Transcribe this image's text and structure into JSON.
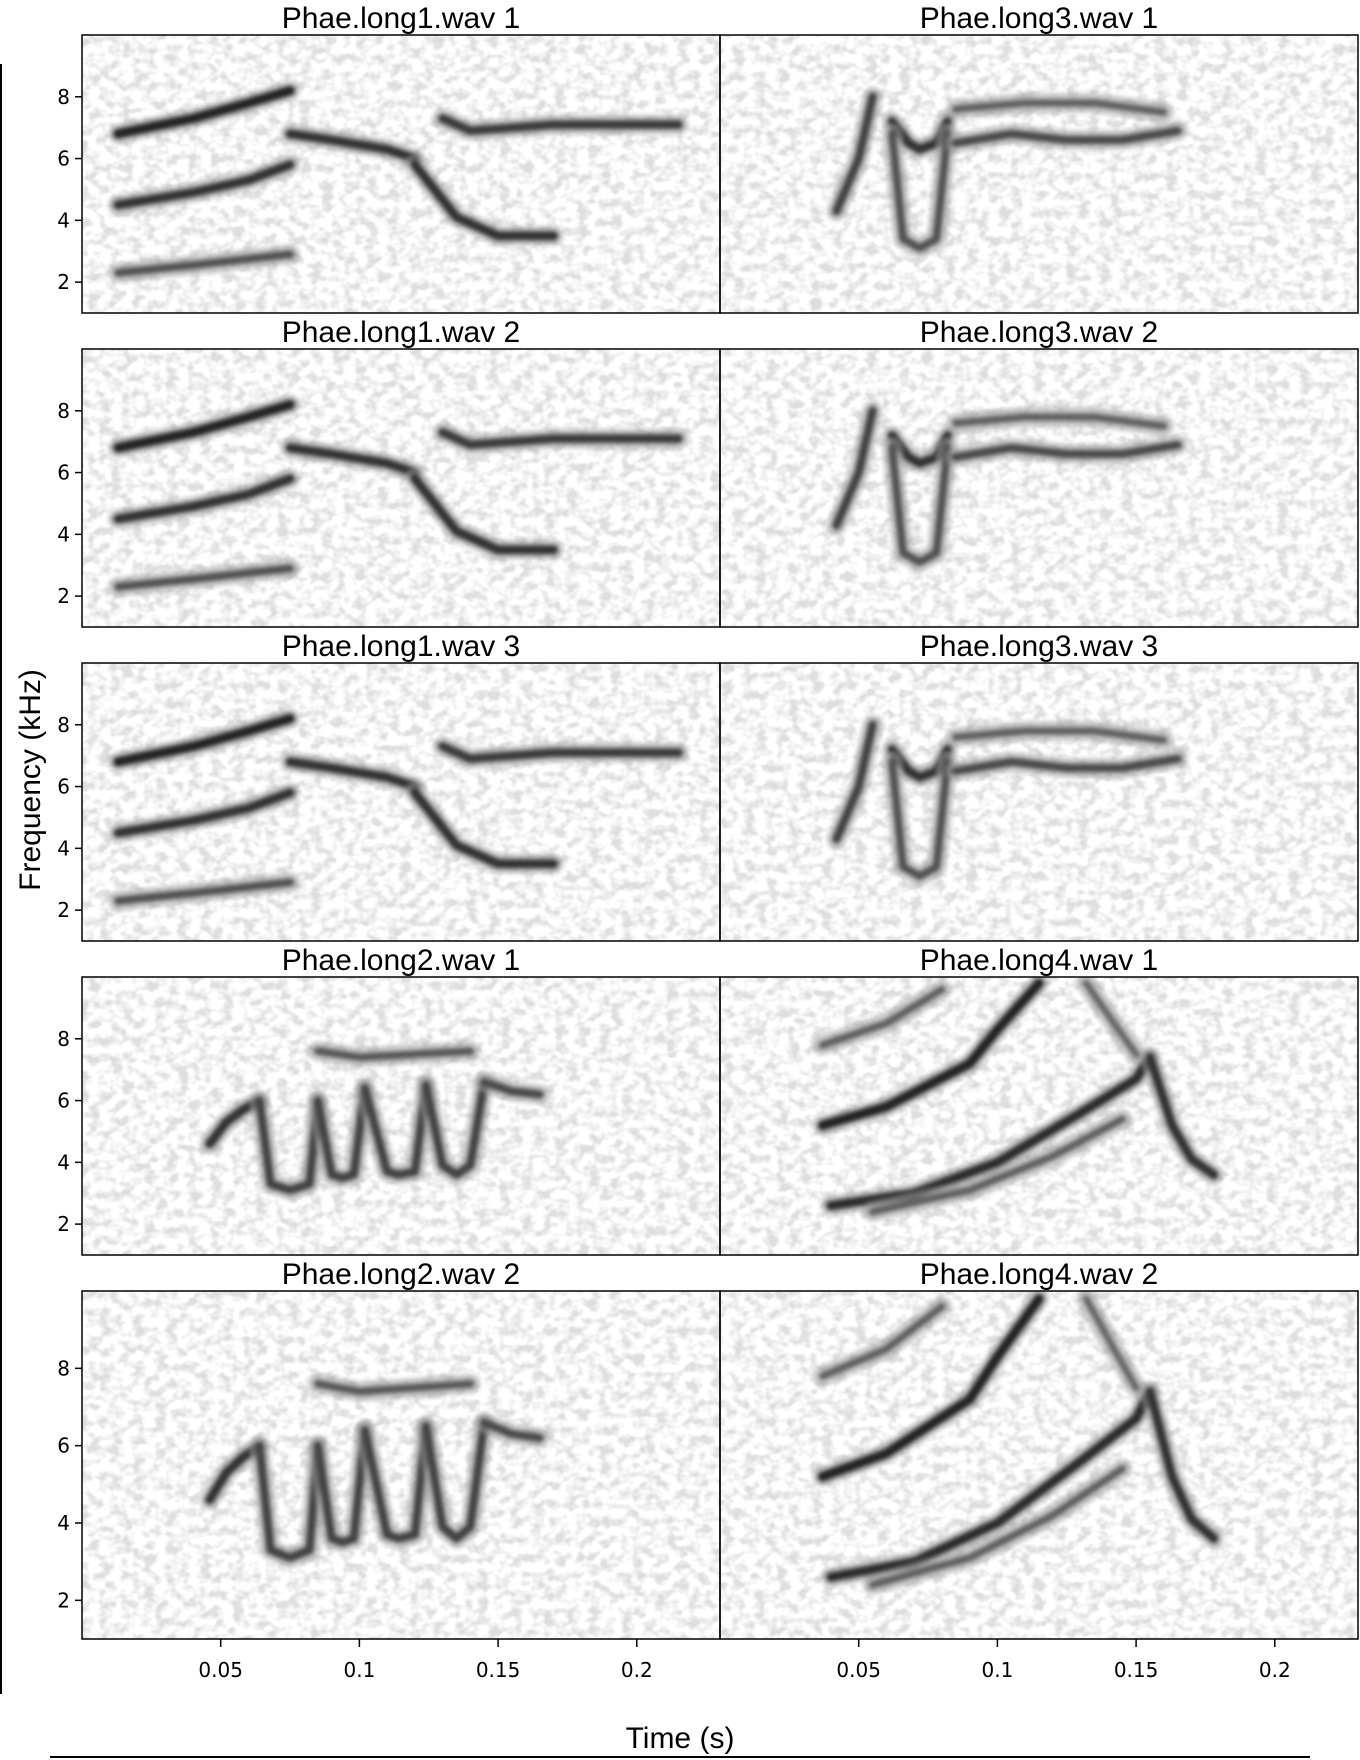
{
  "chart_data": {
    "type": "heatmap",
    "subtype": "spectrogram-grid",
    "colormap": "grayscale",
    "xlabel": "Time (s)",
    "ylabel": "Frequency (kHz)",
    "xlim": [
      0,
      0.23
    ],
    "ylim": [
      1,
      10
    ],
    "x_ticks": [
      "0.05",
      "0.1",
      "0.15",
      "0.2"
    ],
    "x_tick_values": [
      0.05,
      0.1,
      0.15,
      0.2
    ],
    "y_ticks": [
      "2",
      "4",
      "6",
      "8"
    ],
    "y_tick_values": [
      2,
      4,
      6,
      8
    ],
    "grid": false,
    "panels": [
      {
        "title": "Phae.long1.wav 1",
        "row": 0,
        "col": 0,
        "style": "long1"
      },
      {
        "title": "Phae.long3.wav 1",
        "row": 0,
        "col": 1,
        "style": "long3"
      },
      {
        "title": "Phae.long1.wav 2",
        "row": 1,
        "col": 0,
        "style": "long1"
      },
      {
        "title": "Phae.long3.wav 2",
        "row": 1,
        "col": 1,
        "style": "long3"
      },
      {
        "title": "Phae.long1.wav 3",
        "row": 2,
        "col": 0,
        "style": "long1"
      },
      {
        "title": "Phae.long3.wav 3",
        "row": 2,
        "col": 1,
        "style": "long3"
      },
      {
        "title": "Phae.long2.wav 1",
        "row": 3,
        "col": 0,
        "style": "long2"
      },
      {
        "title": "Phae.long4.wav 1",
        "row": 3,
        "col": 1,
        "style": "long4"
      },
      {
        "title": "Phae.long2.wav 2",
        "row": 4,
        "col": 0,
        "style": "long2"
      },
      {
        "title": "Phae.long4.wav 2",
        "row": 4,
        "col": 1,
        "style": "long4"
      }
    ],
    "traces": {
      "long1": [
        {
          "x": [
            0.013,
            0.04,
            0.06,
            0.075
          ],
          "y": [
            6.8,
            7.3,
            7.8,
            8.2
          ],
          "w": 1.0
        },
        {
          "x": [
            0.013,
            0.04,
            0.06,
            0.075
          ],
          "y": [
            4.5,
            4.9,
            5.3,
            5.8
          ],
          "w": 0.9
        },
        {
          "x": [
            0.013,
            0.045,
            0.075
          ],
          "y": [
            2.3,
            2.6,
            2.9
          ],
          "w": 0.7
        },
        {
          "x": [
            0.075,
            0.09,
            0.11,
            0.12
          ],
          "y": [
            6.8,
            6.6,
            6.3,
            6.0
          ],
          "w": 0.9
        },
        {
          "x": [
            0.12,
            0.135,
            0.15,
            0.17
          ],
          "y": [
            5.8,
            4.1,
            3.5,
            3.5
          ],
          "w": 0.9
        },
        {
          "x": [
            0.13,
            0.14,
            0.17,
            0.2,
            0.215
          ],
          "y": [
            7.3,
            6.9,
            7.1,
            7.1,
            7.1
          ],
          "w": 0.85
        }
      ],
      "long3": [
        {
          "x": [
            0.042,
            0.05,
            0.055
          ],
          "y": [
            4.3,
            6.0,
            8.0
          ],
          "w": 0.8
        },
        {
          "x": [
            0.062,
            0.068,
            0.072,
            0.078,
            0.082
          ],
          "y": [
            7.2,
            6.5,
            6.3,
            6.5,
            7.2
          ],
          "w": 0.9
        },
        {
          "x": [
            0.062,
            0.066,
            0.072,
            0.078,
            0.082
          ],
          "y": [
            6.8,
            3.4,
            3.1,
            3.4,
            6.8
          ],
          "w": 0.7
        },
        {
          "x": [
            0.085,
            0.105,
            0.125,
            0.145,
            0.165
          ],
          "y": [
            6.5,
            6.8,
            6.6,
            6.6,
            6.9
          ],
          "w": 0.75
        },
        {
          "x": [
            0.085,
            0.11,
            0.135,
            0.16
          ],
          "y": [
            7.6,
            7.8,
            7.8,
            7.5
          ],
          "w": 0.6
        }
      ],
      "long2": [
        {
          "x": [
            0.046,
            0.052,
            0.058,
            0.064
          ],
          "y": [
            4.6,
            5.3,
            5.7,
            6.0
          ],
          "w": 0.9
        },
        {
          "x": [
            0.064,
            0.068,
            0.075,
            0.082,
            0.085
          ],
          "y": [
            6.0,
            3.3,
            3.1,
            3.3,
            6.0
          ],
          "w": 0.8
        },
        {
          "x": [
            0.085,
            0.09,
            0.094,
            0.098,
            0.102
          ],
          "y": [
            6.0,
            3.6,
            3.5,
            3.6,
            6.4
          ],
          "w": 0.8
        },
        {
          "x": [
            0.102,
            0.11,
            0.114,
            0.12,
            0.124
          ],
          "y": [
            6.4,
            3.7,
            3.6,
            3.7,
            6.5
          ],
          "w": 0.8
        },
        {
          "x": [
            0.124,
            0.13,
            0.135,
            0.14,
            0.145
          ],
          "y": [
            6.5,
            3.9,
            3.6,
            3.9,
            6.6
          ],
          "w": 0.8
        },
        {
          "x": [
            0.145,
            0.155,
            0.165
          ],
          "y": [
            6.6,
            6.3,
            6.2
          ],
          "w": 0.75
        },
        {
          "x": [
            0.085,
            0.1,
            0.12,
            0.14
          ],
          "y": [
            7.6,
            7.4,
            7.5,
            7.6
          ],
          "w": 0.65
        }
      ],
      "long4": [
        {
          "x": [
            0.037,
            0.06,
            0.09,
            0.1,
            0.115
          ],
          "y": [
            5.2,
            5.8,
            7.2,
            8.3,
            9.8
          ],
          "w": 1.0
        },
        {
          "x": [
            0.04,
            0.07,
            0.1,
            0.13,
            0.15,
            0.155
          ],
          "y": [
            2.6,
            3.0,
            4.0,
            5.6,
            6.7,
            7.4
          ],
          "w": 0.95
        },
        {
          "x": [
            0.155,
            0.163,
            0.17,
            0.178
          ],
          "y": [
            7.4,
            5.2,
            4.1,
            3.6
          ],
          "w": 0.9
        },
        {
          "x": [
            0.037,
            0.06,
            0.08
          ],
          "y": [
            7.8,
            8.5,
            9.6
          ],
          "w": 0.6
        },
        {
          "x": [
            0.055,
            0.09,
            0.12,
            0.145
          ],
          "y": [
            2.4,
            3.1,
            4.2,
            5.4
          ],
          "w": 0.6
        },
        {
          "x": [
            0.132,
            0.142,
            0.15
          ],
          "y": [
            9.8,
            8.5,
            7.5
          ],
          "w": 0.55
        }
      ]
    }
  }
}
